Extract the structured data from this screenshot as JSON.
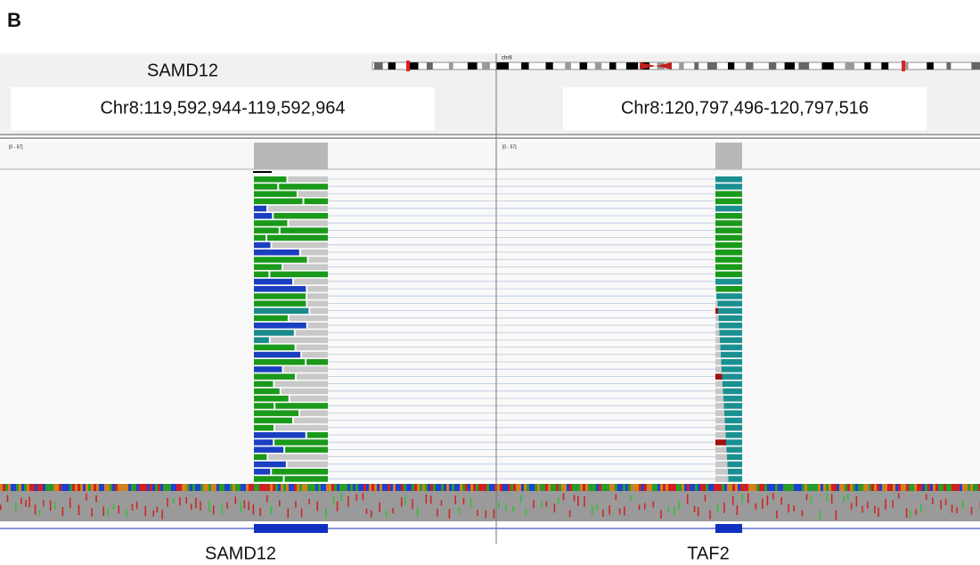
{
  "panel_label": "B",
  "header": {
    "left_gene": "SAMD12",
    "chromosome": "chr8",
    "left_locus": "Chr8:119,592,944-119,592,964",
    "right_locus": "Chr8:120,797,496-120,797,516"
  },
  "coverage": {
    "left_range": "[0 - 57]",
    "right_range": "[0 - 57]"
  },
  "genes": {
    "left": "SAMD12",
    "right": "TAF2"
  }
}
